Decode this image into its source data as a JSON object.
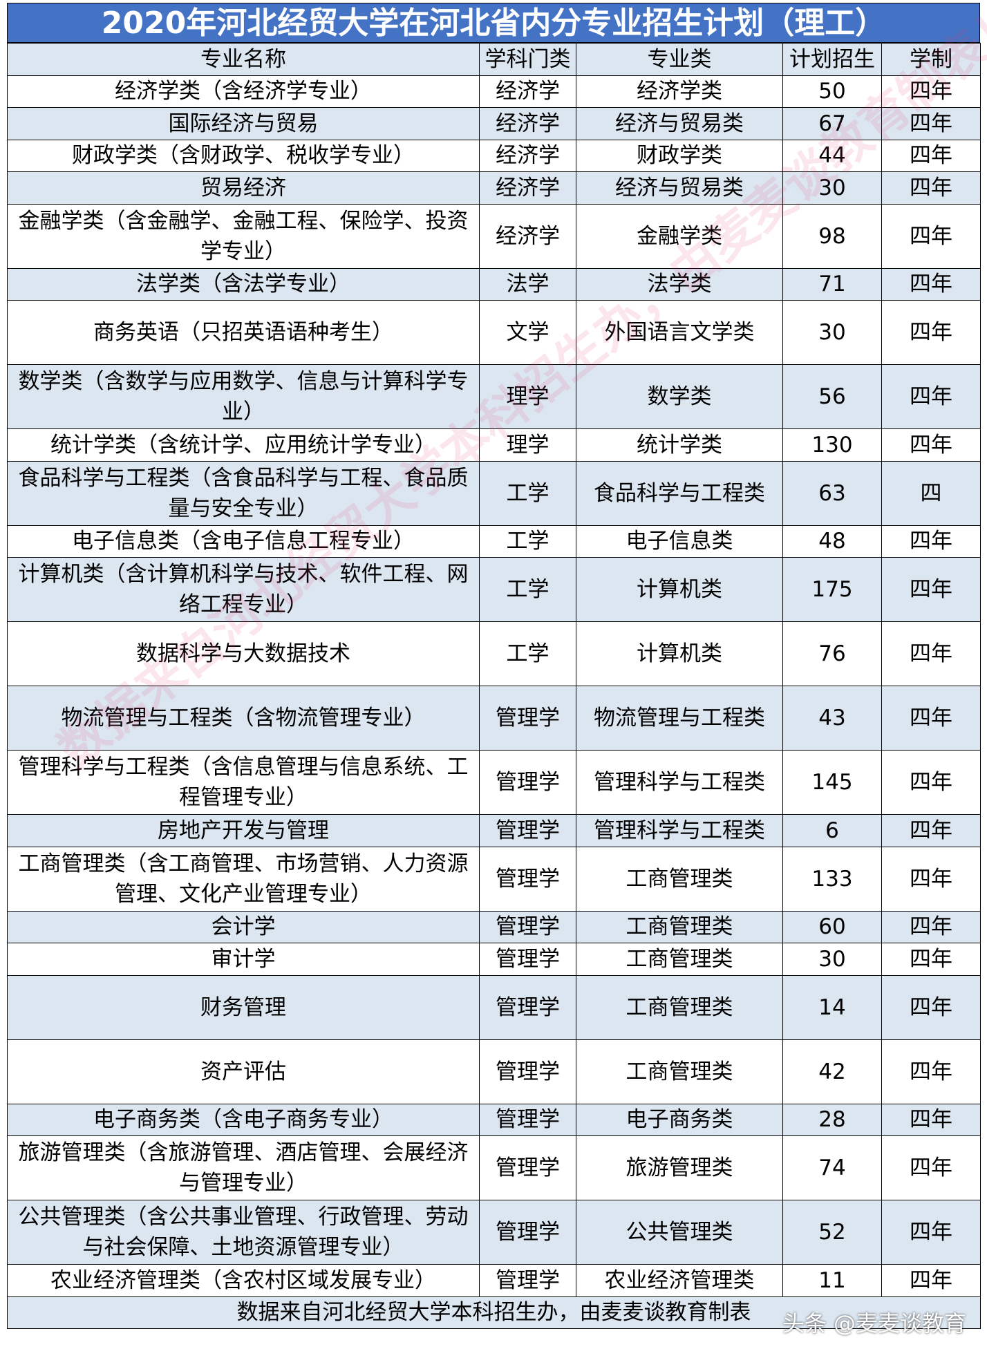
{
  "header": {
    "title": "2020年河北经贸大学在河北省内分专业招生计划（理工）"
  },
  "table": {
    "columns": [
      "专业名称",
      "学科门类",
      "专业类",
      "计划招生",
      "学制"
    ],
    "rows": [
      [
        "经济学类（含经济学专业）",
        "经济学",
        "经济学类",
        50,
        "四年"
      ],
      [
        "国际经济与贸易",
        "经济学",
        "经济与贸易类",
        67,
        "四年"
      ],
      [
        "财政学类（含财政学、税收学专业）",
        "经济学",
        "财政学类",
        44,
        "四年"
      ],
      [
        "贸易经济",
        "经济学",
        "经济与贸易类",
        30,
        "四年"
      ],
      [
        "金融学类（含金融学、金融工程、保险学、投资学专业）",
        "经济学",
        "金融学类",
        98,
        "四年"
      ],
      [
        "法学类（含法学专业）",
        "法学",
        "法学类",
        71,
        "四年"
      ],
      [
        "商务英语（只招英语语种考生）",
        "文学",
        "外国语言文学类",
        30,
        "四年"
      ],
      [
        "数学类（含数学与应用数学、信息与计算科学专业）",
        "理学",
        "数学类",
        56,
        "四年"
      ],
      [
        "统计学类（含统计学、应用统计学专业）",
        "理学",
        "统计学类",
        130,
        "四年"
      ],
      [
        "食品科学与工程类（含食品科学与工程、食品质量与安全专业）",
        "工学",
        "食品科学与工程类",
        63,
        "四"
      ],
      [
        "电子信息类（含电子信息工程专业）",
        "工学",
        "电子信息类",
        48,
        "四年"
      ],
      [
        "计算机类（含计算机科学与技术、软件工程、网络工程专业）",
        "工学",
        "计算机类",
        175,
        "四年"
      ],
      [
        "数据科学与大数据技术",
        "工学",
        "计算机类",
        76,
        "四年"
      ],
      [
        "物流管理与工程类（含物流管理专业）",
        "管理学",
        "物流管理与工程类",
        43,
        "四年"
      ],
      [
        "管理科学与工程类（含信息管理与信息系统、工程管理专业）",
        "管理学",
        "管理科学与工程类",
        145,
        "四年"
      ],
      [
        "房地产开发与管理",
        "管理学",
        "管理科学与工程类",
        6,
        "四年"
      ],
      [
        "工商管理类（含工商管理、市场营销、人力资源管理、文化产业管理专业）",
        "管理学",
        "工商管理类",
        133,
        "四年"
      ],
      [
        "会计学",
        "管理学",
        "工商管理类",
        60,
        "四年"
      ],
      [
        "审计学",
        "管理学",
        "工商管理类",
        30,
        "四年"
      ],
      [
        "财务管理",
        "管理学",
        "工商管理类",
        14,
        "四年"
      ],
      [
        "资产评估",
        "管理学",
        "工商管理类",
        42,
        "四年"
      ],
      [
        "电子商务类（含电子商务专业）",
        "管理学",
        "电子商务类",
        28,
        "四年"
      ],
      [
        "旅游管理类（含旅游管理、酒店管理、会展经济与管理专业）",
        "管理学",
        "旅游管理类",
        74,
        "四年"
      ],
      [
        "公共管理类（含公共事业管理、行政管理、劳动与社会保障、土地资源管理专业）",
        "管理学",
        "公共管理类",
        52,
        "四年"
      ],
      [
        "农业经济管理类（含农村区域发展专业）",
        "管理学",
        "农业经济管理类",
        11,
        "四年"
      ]
    ],
    "footer": "数据来自河北经贸大学本科招生办，由麦麦谈教育制表"
  },
  "watermark": "数据来自河北经贸大学本科招生办，由麦麦谈教育制表！",
  "badge": "头条 @麦麦谈教育"
}
